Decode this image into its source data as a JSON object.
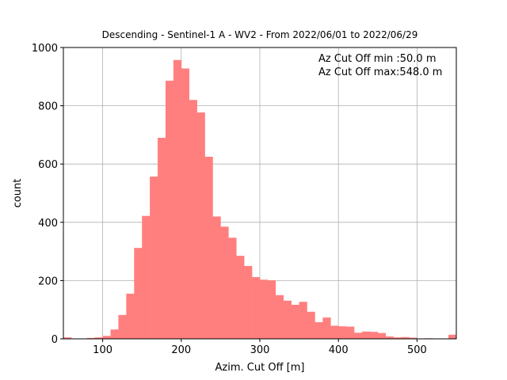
{
  "chart_data": {
    "type": "bar",
    "title": "Descending - Sentinel-1 A - WV2 - From 2022/06/01 to 2022/06/29",
    "xlabel": "Azim. Cut Off [m]",
    "ylabel": "count",
    "xlim": [
      50,
      550
    ],
    "ylim": [
      0,
      1000
    ],
    "xticks": [
      100,
      200,
      300,
      400,
      500
    ],
    "yticks": [
      0,
      200,
      400,
      600,
      800,
      1000
    ],
    "grid": true,
    "bar_color": "#ff7f7f",
    "bin_edges": [
      50,
      60,
      70,
      80,
      90,
      100,
      110,
      120,
      130,
      140,
      150,
      160,
      170,
      180,
      190,
      200,
      210,
      220,
      230,
      240,
      250,
      260,
      270,
      280,
      290,
      300,
      310,
      320,
      330,
      340,
      350,
      360,
      370,
      380,
      390,
      400,
      410,
      420,
      430,
      440,
      450,
      460,
      470,
      480,
      490,
      500,
      510,
      520,
      530,
      540,
      550
    ],
    "values": [
      5,
      0,
      0,
      3,
      5,
      10,
      32,
      82,
      155,
      312,
      422,
      557,
      690,
      886,
      957,
      928,
      820,
      777,
      625,
      420,
      385,
      347,
      285,
      250,
      212,
      203,
      201,
      150,
      131,
      117,
      127,
      93,
      57,
      73,
      45,
      43,
      42,
      21,
      25,
      24,
      20,
      8,
      5,
      6,
      4,
      1,
      2,
      1,
      0,
      14
    ],
    "annotations": [
      "Az Cut Off min :50.0 m",
      "Az Cut Off max:548.0 m"
    ]
  }
}
